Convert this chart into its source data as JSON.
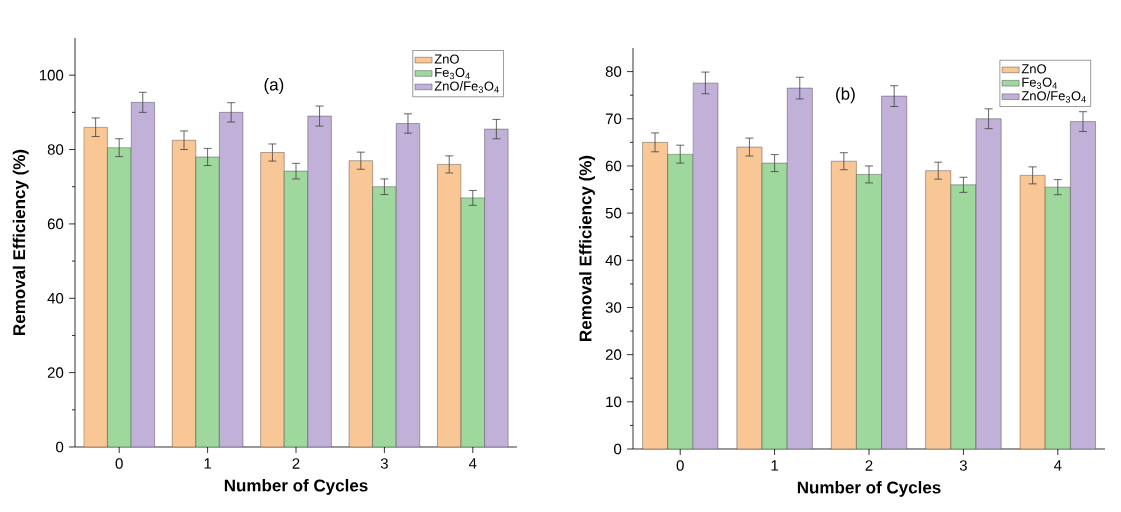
{
  "chart_data": [
    {
      "type": "bar",
      "title": "(a)",
      "xlabel": "Number of Cycles",
      "ylabel": "Removal Efficiency (%)",
      "categories": [
        "0",
        "1",
        "2",
        "3",
        "4"
      ],
      "series": [
        {
          "name": "ZnO",
          "color": "#f9c796",
          "values": [
            86,
            82.5,
            79.2,
            77,
            76
          ],
          "errors": [
            2.5,
            2.5,
            2.3,
            2.3,
            2.3
          ]
        },
        {
          "name": "Fe$_{3}$O$_{4}$",
          "color": "#9fd89d",
          "values": [
            80.5,
            78,
            74.2,
            70,
            67
          ],
          "errors": [
            2.4,
            2.3,
            2.1,
            2.1,
            2
          ]
        },
        {
          "name": "ZnO/Fe$_{3}$O$_{4}$",
          "color": "#c1b1d8",
          "values": [
            92.7,
            90,
            89,
            87,
            85.5
          ],
          "errors": [
            2.7,
            2.6,
            2.7,
            2.6,
            2.6
          ]
        }
      ],
      "ylim": [
        0,
        110
      ],
      "yticks": [
        0,
        20,
        40,
        60,
        80,
        100
      ],
      "legend": "top right",
      "grid": false
    },
    {
      "type": "bar",
      "title": "(b)",
      "xlabel": "Number of Cycles",
      "ylabel": "Removal Efficiency (%)",
      "categories": [
        "0",
        "1",
        "2",
        "3",
        "4"
      ],
      "series": [
        {
          "name": "ZnO",
          "color": "#f9c796",
          "values": [
            65,
            64,
            61,
            59,
            58
          ],
          "errors": [
            2,
            1.9,
            1.8,
            1.8,
            1.8
          ]
        },
        {
          "name": "Fe$_{3}$O$_{4}$",
          "color": "#9fd89d",
          "values": [
            62.5,
            60.6,
            58.2,
            56,
            55.5
          ],
          "errors": [
            1.9,
            1.8,
            1.8,
            1.6,
            1.6
          ]
        },
        {
          "name": "ZnO/Fe$_{3}$O$_{4}$",
          "color": "#c1b1d8",
          "values": [
            77.6,
            76.5,
            74.8,
            70,
            69.4
          ],
          "errors": [
            2.3,
            2.3,
            2.2,
            2.1,
            2.1
          ]
        }
      ],
      "ylim": [
        0,
        85
      ],
      "yticks": [
        0,
        10,
        20,
        30,
        40,
        50,
        60,
        70,
        80
      ],
      "legend": "top right",
      "grid": false
    }
  ]
}
